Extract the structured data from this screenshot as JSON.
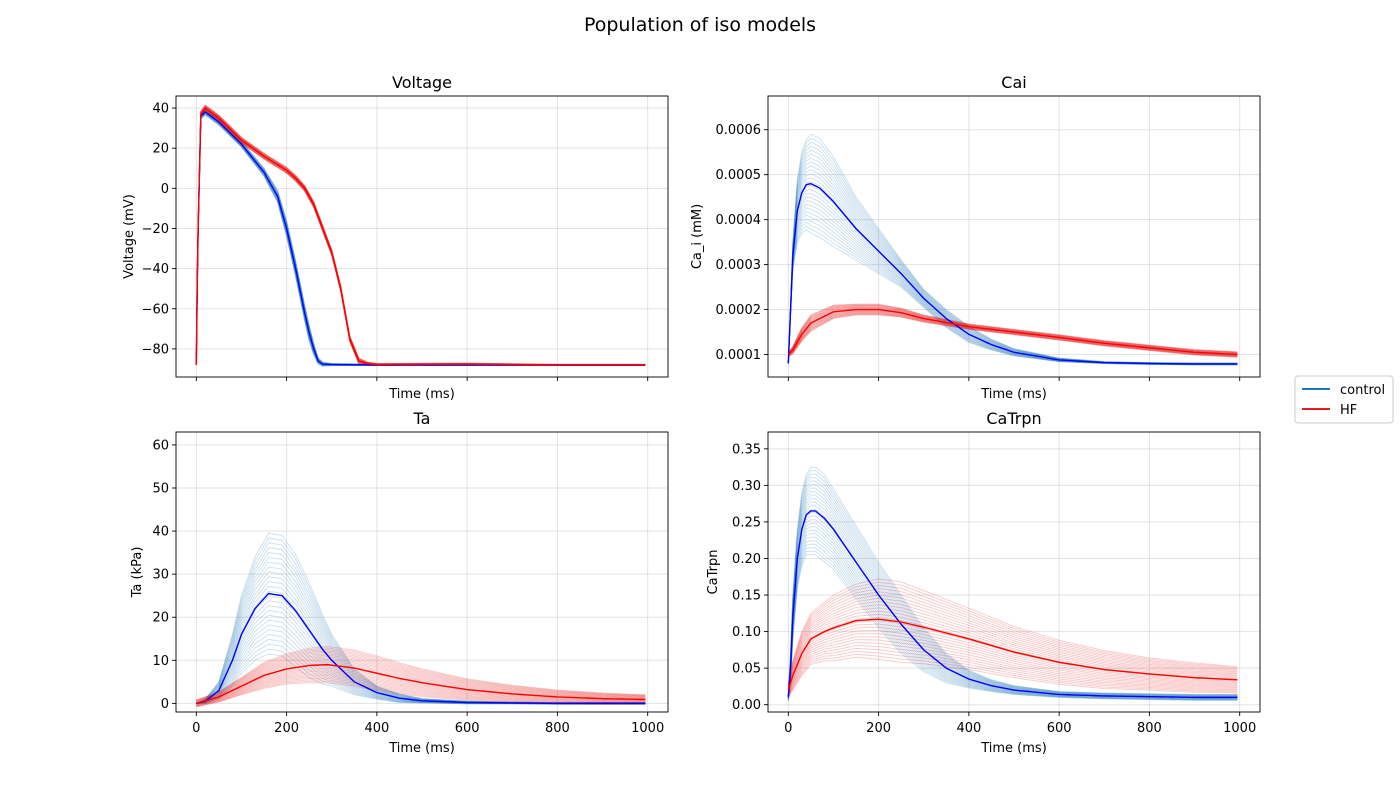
{
  "figure_title": "Population of iso models",
  "colors": {
    "control_ensemble": "#1f77b4",
    "control_mean": "#0000ff",
    "hf_ensemble": "#e41a1c",
    "hf_mean": "#ff0000",
    "grid": "#b0b0b0"
  },
  "legend": {
    "placement": "right-center",
    "entries": [
      {
        "label": "control",
        "color": "#1f77b4"
      },
      {
        "label": "HF",
        "color": "#e41a1c"
      }
    ]
  },
  "chart_data": [
    {
      "id": "voltage",
      "type": "line",
      "title": "Voltage",
      "xlabel": "Time (ms)",
      "ylabel": "Voltage (mV)",
      "xlim": [
        -45,
        1045
      ],
      "ylim": [
        -94,
        46
      ],
      "xticks": [
        0,
        200,
        400,
        600,
        800,
        1000
      ],
      "xtick_labels_shown": false,
      "yticks": [
        40,
        20,
        0,
        -20,
        -40,
        -60,
        -80
      ],
      "ytick_labels": [
        "40",
        "20",
        "0",
        "−20",
        "−40",
        "−60",
        "−80"
      ],
      "grid": true,
      "series": [
        {
          "name": "control",
          "x": [
            0,
            3,
            10,
            20,
            50,
            100,
            150,
            180,
            200,
            220,
            240,
            250,
            260,
            270,
            280,
            300,
            400,
            600,
            800,
            995
          ],
          "y": [
            -88,
            -30,
            36,
            38,
            33,
            22,
            8,
            -4,
            -20,
            -40,
            -62,
            -72,
            -80,
            -86,
            -87.6,
            -87.8,
            -88,
            -88,
            -88,
            -88
          ]
        },
        {
          "name": "HF",
          "x": [
            0,
            3,
            10,
            20,
            50,
            100,
            150,
            200,
            220,
            240,
            260,
            280,
            300,
            320,
            340,
            360,
            380,
            400,
            600,
            800,
            995
          ],
          "y": [
            -88,
            -30,
            37,
            40,
            35,
            24,
            16,
            9,
            5,
            0,
            -8,
            -20,
            -32,
            -50,
            -75,
            -86,
            -87.4,
            -87.8,
            -87.6,
            -88,
            -88
          ]
        }
      ],
      "band_series": [
        {
          "name": "control",
          "spread": [
            0,
            0,
            1.5,
            1.5,
            1.5,
            1.5,
            2,
            3,
            4,
            4,
            4,
            4,
            3,
            1.5,
            1,
            0.5,
            0.3,
            0.3,
            0.3,
            0.3
          ]
        },
        {
          "name": "HF",
          "spread": [
            0,
            0,
            1.5,
            1.5,
            1.5,
            1.5,
            1.5,
            1.5,
            1.5,
            1.5,
            1.5,
            1.5,
            1.5,
            1.5,
            1.5,
            1.5,
            0.8,
            0.5,
            0.5,
            0.3,
            0.3
          ]
        }
      ]
    },
    {
      "id": "cai",
      "type": "line",
      "title": "Cai",
      "xlabel": "Time (ms)",
      "ylabel": "Ca_i (mM)",
      "xlim": [
        -45,
        1045
      ],
      "ylim": [
        5e-05,
        0.000675
      ],
      "xticks": [
        0,
        200,
        400,
        600,
        800,
        1000
      ],
      "xtick_labels_shown": false,
      "yticks": [
        0.0006,
        0.0005,
        0.0004,
        0.0003,
        0.0002,
        0.0001
      ],
      "ytick_labels": [
        "0.0006",
        "0.0005",
        "0.0004",
        "0.0003",
        "0.0002",
        "0.0001"
      ],
      "grid": true,
      "series": [
        {
          "name": "control",
          "x": [
            0,
            5,
            10,
            20,
            30,
            40,
            50,
            70,
            100,
            150,
            200,
            250,
            300,
            350,
            400,
            450,
            500,
            600,
            700,
            800,
            900,
            995
          ],
          "y": [
            8e-05,
            0.0002,
            0.00032,
            0.00042,
            0.00046,
            0.000478,
            0.00048,
            0.00047,
            0.00044,
            0.00038,
            0.00033,
            0.00028,
            0.000225,
            0.00018,
            0.000145,
            0.000122,
            0.000105,
            8.8e-05,
            8.2e-05,
            8e-05,
            7.9e-05,
            7.9e-05
          ]
        },
        {
          "name": "HF",
          "x": [
            0,
            10,
            30,
            50,
            100,
            150,
            200,
            250,
            300,
            400,
            500,
            600,
            700,
            800,
            900,
            995
          ],
          "y": [
            0.0001,
            0.00011,
            0.000145,
            0.00017,
            0.000195,
            0.0002,
            0.0002,
            0.000193,
            0.00018,
            0.000162,
            0.00015,
            0.000138,
            0.000125,
            0.000115,
            0.000105,
            0.0001
          ]
        }
      ],
      "band_series": [
        {
          "name": "control",
          "spread": [
            0,
            1e-05,
            3e-05,
            7e-05,
            9e-05,
            0.0001,
            0.00011,
            0.00011,
            0.0001,
            7e-05,
            5e-05,
            3e-05,
            2e-05,
            2e-05,
            1.8e-05,
            1.2e-05,
            8e-06,
            4e-06,
            2e-06,
            2e-06,
            2e-06,
            2e-06
          ]
        },
        {
          "name": "HF",
          "spread": [
            5e-06,
            8e-06,
            1.5e-05,
            1.8e-05,
            1.5e-05,
            1.2e-05,
            1.2e-05,
            1e-05,
            8e-06,
            6e-06,
            6e-06,
            6e-06,
            6e-06,
            6e-06,
            6e-06,
            6e-06
          ]
        }
      ]
    },
    {
      "id": "ta",
      "type": "line",
      "title": "Ta",
      "xlabel": "Time (ms)",
      "ylabel": "Ta (kPa)",
      "xlim": [
        -45,
        1045
      ],
      "ylim": [
        -2,
        63
      ],
      "xticks": [
        0,
        200,
        400,
        600,
        800,
        1000
      ],
      "xtick_labels": [
        "0",
        "200",
        "400",
        "600",
        "800",
        "1000"
      ],
      "yticks": [
        60,
        50,
        40,
        30,
        20,
        10,
        0
      ],
      "ytick_labels": [
        "60",
        "50",
        "40",
        "30",
        "20",
        "10",
        "0"
      ],
      "grid": true,
      "series": [
        {
          "name": "control",
          "x": [
            0,
            20,
            50,
            80,
            100,
            130,
            160,
            190,
            220,
            250,
            280,
            300,
            350,
            400,
            450,
            500,
            600,
            700,
            800,
            900,
            995
          ],
          "y": [
            0,
            0.5,
            3,
            10,
            16,
            22,
            25.5,
            25,
            21.5,
            17,
            12.5,
            10,
            5,
            2.5,
            1.2,
            0.6,
            0.2,
            0.1,
            0,
            0,
            0
          ]
        },
        {
          "name": "HF",
          "x": [
            0,
            50,
            100,
            150,
            200,
            250,
            290,
            350,
            400,
            450,
            500,
            600,
            700,
            800,
            900,
            995
          ],
          "y": [
            0,
            1.5,
            4,
            6.5,
            8,
            8.8,
            9,
            8.2,
            7,
            5.8,
            4.8,
            3.2,
            2.2,
            1.5,
            1.1,
            0.9
          ]
        }
      ],
      "band_series": [
        {
          "name": "control",
          "spread": [
            0,
            0.5,
            2,
            6,
            9,
            12,
            14,
            14,
            13,
            11,
            8,
            6,
            3,
            1.5,
            1,
            0.5,
            0.3,
            0.2,
            0.2,
            0.2,
            0.2
          ]
        },
        {
          "name": "HF",
          "spread": [
            0.8,
            1.2,
            2,
            3,
            3.5,
            4,
            4.2,
            4.2,
            4,
            3.6,
            3.2,
            2.5,
            2,
            1.6,
            1.3,
            1.1
          ]
        }
      ]
    },
    {
      "id": "catrpn",
      "type": "line",
      "title": "CaTrpn",
      "xlabel": "Time (ms)",
      "ylabel": "CaTrpn",
      "xlim": [
        -45,
        1045
      ],
      "ylim": [
        -0.01,
        0.373
      ],
      "xticks": [
        0,
        200,
        400,
        600,
        800,
        1000
      ],
      "xtick_labels": [
        "0",
        "200",
        "400",
        "600",
        "800",
        "1000"
      ],
      "yticks": [
        0.35,
        0.3,
        0.25,
        0.2,
        0.15,
        0.1,
        0.05,
        0.0
      ],
      "ytick_labels": [
        "0.35",
        "0.30",
        "0.25",
        "0.20",
        "0.15",
        "0.10",
        "0.05",
        "0.00"
      ],
      "grid": true,
      "series": [
        {
          "name": "control",
          "x": [
            0,
            5,
            10,
            20,
            30,
            40,
            50,
            60,
            80,
            100,
            150,
            200,
            250,
            300,
            350,
            400,
            450,
            500,
            600,
            700,
            800,
            900,
            995
          ],
          "y": [
            0.01,
            0.05,
            0.12,
            0.2,
            0.24,
            0.26,
            0.265,
            0.265,
            0.255,
            0.24,
            0.195,
            0.15,
            0.11,
            0.075,
            0.05,
            0.035,
            0.026,
            0.02,
            0.014,
            0.012,
            0.011,
            0.01,
            0.01
          ]
        },
        {
          "name": "HF",
          "x": [
            0,
            10,
            30,
            50,
            80,
            100,
            150,
            200,
            250,
            300,
            400,
            500,
            600,
            700,
            800,
            900,
            995
          ],
          "y": [
            0.02,
            0.04,
            0.07,
            0.09,
            0.1,
            0.105,
            0.115,
            0.117,
            0.113,
            0.106,
            0.09,
            0.072,
            0.058,
            0.048,
            0.042,
            0.037,
            0.034
          ]
        }
      ],
      "band_series": [
        {
          "name": "control",
          "spread": [
            0.005,
            0.02,
            0.03,
            0.04,
            0.05,
            0.055,
            0.06,
            0.06,
            0.06,
            0.055,
            0.05,
            0.045,
            0.04,
            0.03,
            0.02,
            0.012,
            0.008,
            0.006,
            0.004,
            0.004,
            0.004,
            0.004,
            0.004
          ]
        },
        {
          "name": "HF",
          "spread": [
            0.01,
            0.02,
            0.03,
            0.035,
            0.04,
            0.045,
            0.05,
            0.055,
            0.055,
            0.05,
            0.042,
            0.035,
            0.03,
            0.026,
            0.022,
            0.02,
            0.018
          ]
        }
      ]
    }
  ]
}
